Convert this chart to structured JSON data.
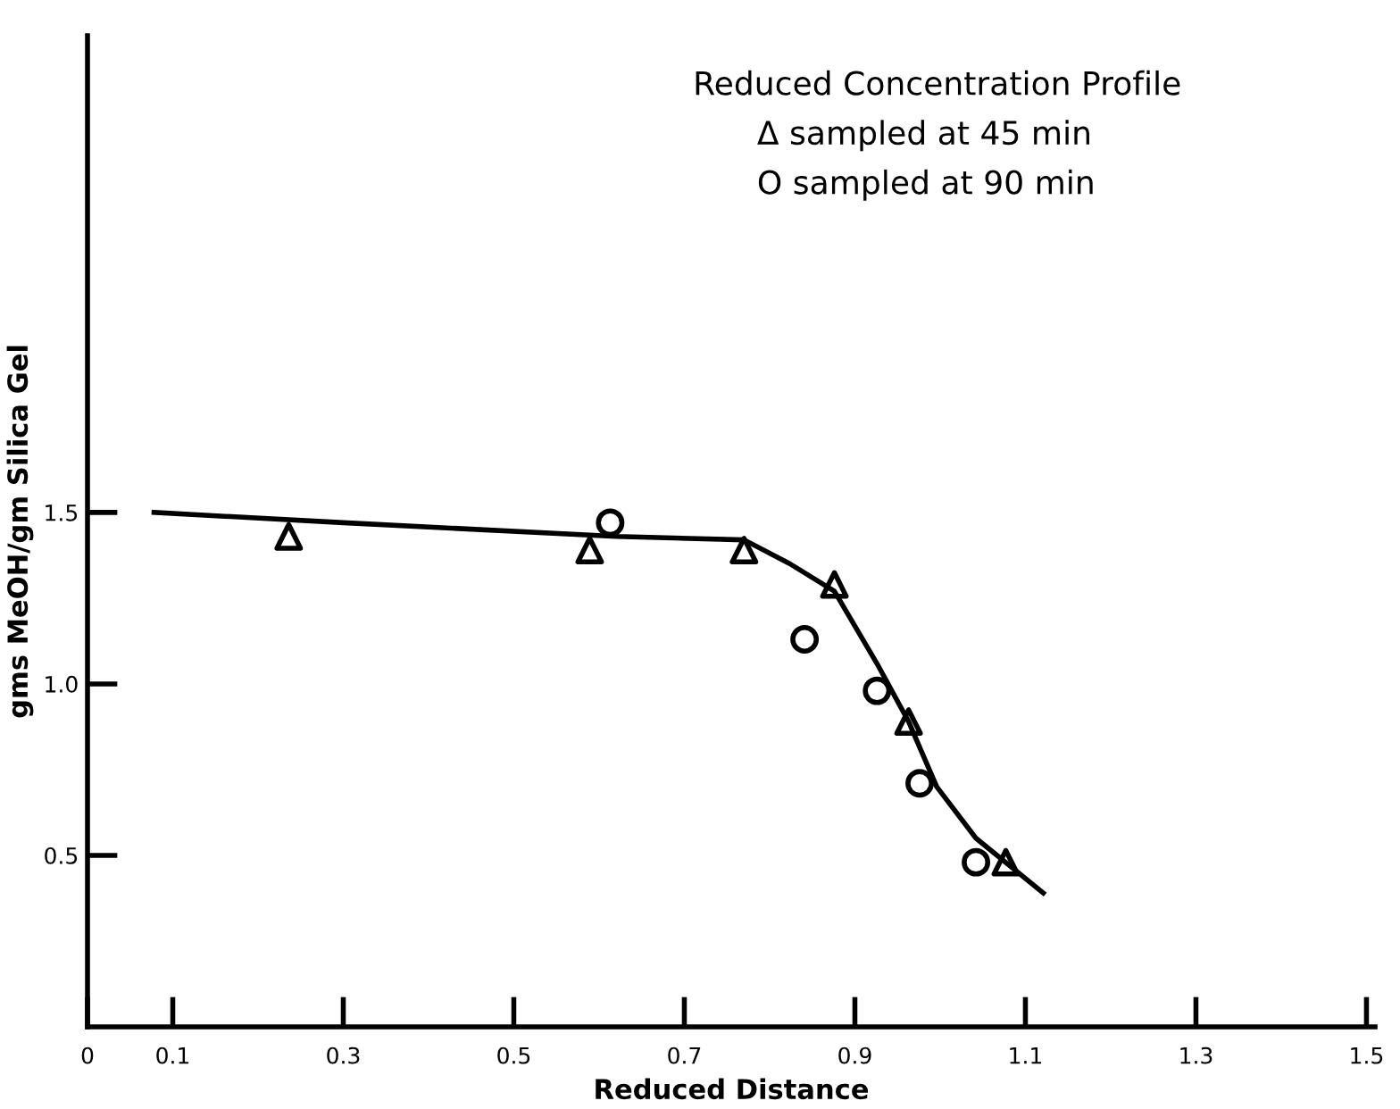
{
  "chart_data": {
    "type": "scatter",
    "title": "Reduced Concentration Profile",
    "annotations": [
      "Δ sampled at 45 min",
      "O sampled at 90 min"
    ],
    "xlabel": "Reduced Distance",
    "ylabel": "gms MeOH/gm Silica Gel",
    "xlim": [
      0,
      1.51
    ],
    "ylim": [
      0,
      2.89
    ],
    "xticks": [
      {
        "value": 0,
        "label": "0"
      },
      0.1,
      0.3,
      0.5,
      0.7,
      0.9,
      1.1,
      1.3,
      1.5
    ],
    "yticks": [
      0.5,
      {
        "value": 1.0,
        "label": "1.0"
      },
      1.5
    ],
    "grid": false,
    "legend": false,
    "series": [
      {
        "type": "line",
        "color": "#000000",
        "marker": "none",
        "line_style": "solid",
        "x": [
          0.078,
          0.3,
          0.62,
          0.77,
          0.824,
          0.876,
          0.928,
          0.963,
          0.996,
          1.042,
          1.121
        ],
        "values": [
          1.5,
          1.47,
          1.43,
          1.42,
          1.35,
          1.27,
          1.05,
          0.89,
          0.7,
          0.55,
          0.39
        ]
      },
      {
        "color": "#000000",
        "marker": "triangle",
        "x": [
          0.236,
          0.589,
          0.77,
          0.876,
          0.963,
          1.077
        ],
        "values": [
          1.43,
          1.39,
          1.39,
          1.29,
          0.89,
          0.48
        ]
      },
      {
        "color": "#000000",
        "marker": "circle",
        "x": [
          0.613,
          0.841,
          0.926,
          0.976,
          1.042
        ],
        "values": [
          1.47,
          1.13,
          0.98,
          0.71,
          0.48
        ]
      }
    ]
  }
}
